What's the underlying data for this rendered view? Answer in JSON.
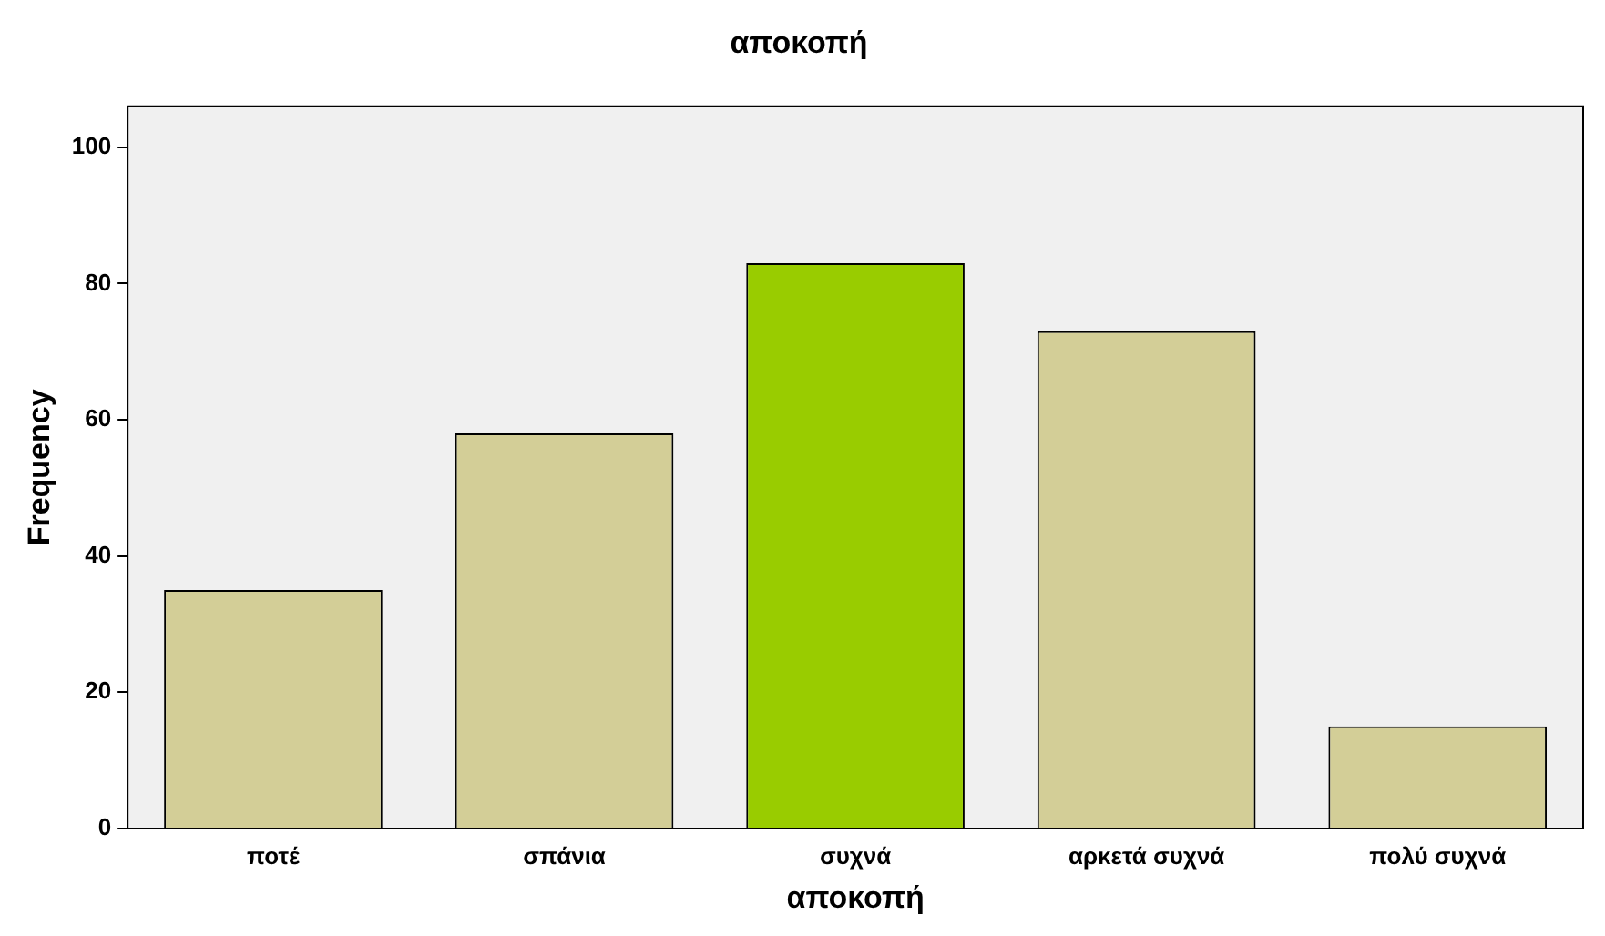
{
  "chart_data": {
    "type": "bar",
    "title": "αποκοπή",
    "xlabel": "αποκοπή",
    "ylabel": "Frequency",
    "categories": [
      "ποτέ",
      "σπάνια",
      "συχνά",
      "αρκετά συχνά",
      "πολύ συχνά"
    ],
    "values": [
      35,
      58,
      83,
      73,
      15
    ],
    "colors": [
      "#d3ce97",
      "#d3ce97",
      "#99cc00",
      "#d3ce97",
      "#d3ce97"
    ],
    "ylim": [
      0,
      106
    ],
    "yticks": [
      0,
      20,
      40,
      60,
      80,
      100
    ],
    "grid": false,
    "legend": false
  }
}
